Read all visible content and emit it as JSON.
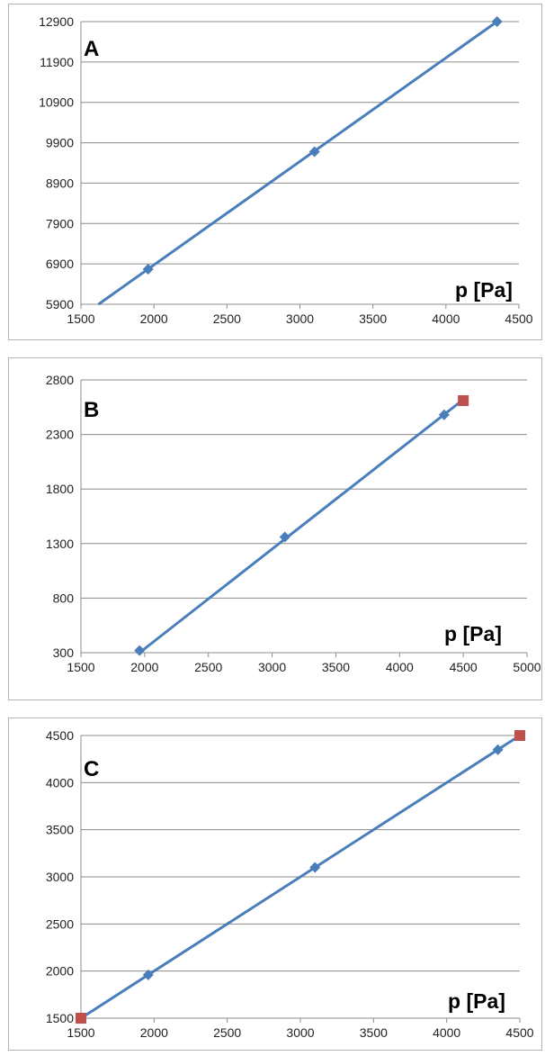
{
  "colors": {
    "series": "#4a7ebb",
    "highlight": "#c0504d",
    "grid": "#8c8c8c"
  },
  "chart_data": [
    {
      "type": "line",
      "letter": "A",
      "xlabel": "p [Pa]",
      "ylabel": "",
      "xlim": [
        1500,
        4500
      ],
      "ylim": [
        5900,
        12900
      ],
      "xticks": [
        1500,
        2000,
        2500,
        3000,
        3500,
        4000,
        4500
      ],
      "yticks": [
        5900,
        6900,
        7900,
        8900,
        9900,
        10900,
        11900,
        12900
      ],
      "grid": true,
      "line": [
        [
          1620,
          5900
        ],
        [
          4350,
          12900
        ]
      ],
      "series": [
        {
          "points": [
            [
              1960,
              6770
            ],
            [
              3100,
              9680
            ],
            [
              4350,
              12900
            ]
          ]
        }
      ],
      "highlight": []
    },
    {
      "type": "line",
      "letter": "B",
      "xlabel": "p [Pa]",
      "ylabel": "",
      "xlim": [
        1500,
        5000
      ],
      "ylim": [
        300,
        2800
      ],
      "xticks": [
        1500,
        2000,
        2500,
        3000,
        3500,
        4000,
        4500,
        5000
      ],
      "yticks": [
        300,
        800,
        1300,
        1800,
        2300,
        2800
      ],
      "grid": true,
      "line": [
        [
          1960,
          300
        ],
        [
          4500,
          2620
        ]
      ],
      "series": [
        {
          "points": [
            [
              1960,
              320
            ],
            [
              3100,
              1360
            ],
            [
              4350,
              2480
            ]
          ]
        }
      ],
      "highlight": [
        [
          4500,
          2610
        ]
      ]
    },
    {
      "type": "line",
      "letter": "C",
      "xlabel": "p [Pa]",
      "ylabel": "",
      "xlim": [
        1500,
        4500
      ],
      "ylim": [
        1500,
        4500
      ],
      "xticks": [
        1500,
        2000,
        2500,
        3000,
        3500,
        4000,
        4500
      ],
      "yticks": [
        1500,
        2000,
        2500,
        3000,
        3500,
        4000,
        4500
      ],
      "grid": true,
      "line": [
        [
          1500,
          1500
        ],
        [
          4500,
          4500
        ]
      ],
      "series": [
        {
          "points": [
            [
              1960,
              1960
            ],
            [
              3100,
              3100
            ],
            [
              4350,
              4350
            ]
          ]
        }
      ],
      "highlight": [
        [
          1500,
          1500
        ],
        [
          4500,
          4500
        ]
      ]
    }
  ]
}
